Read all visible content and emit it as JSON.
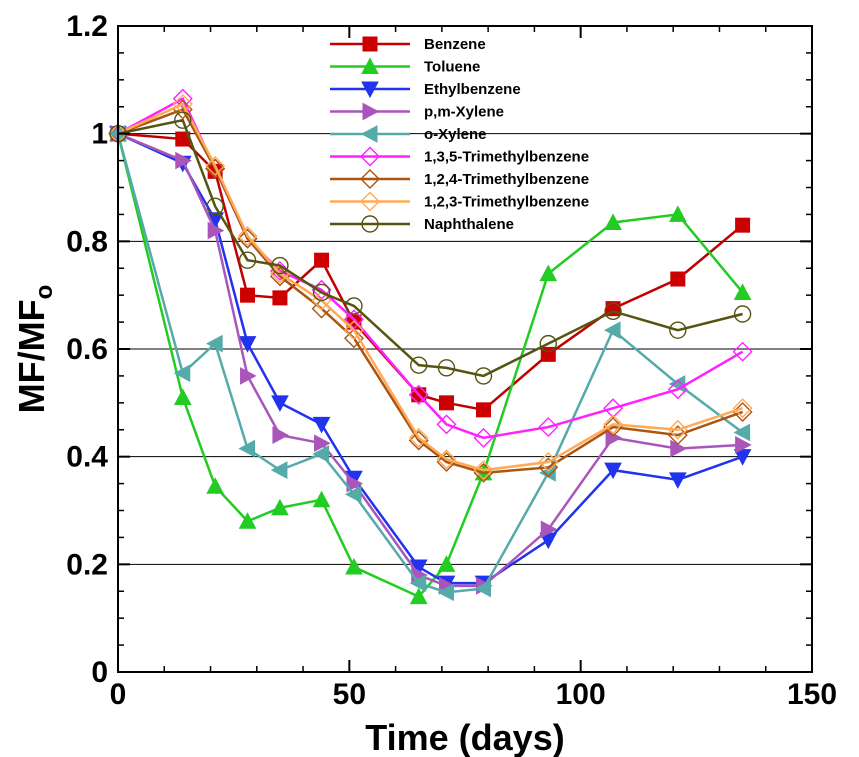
{
  "chart_data": {
    "type": "line",
    "xlabel": "Time (days)",
    "ylabel_main": "MF/MF",
    "ylabel_sub": "o",
    "xlim": [
      0,
      150
    ],
    "ylim": [
      0,
      1.2
    ],
    "xticks": [
      0,
      50,
      100,
      150
    ],
    "xtick_labels": [
      "0",
      "50",
      "100",
      "150"
    ],
    "yticks": [
      0,
      0.2,
      0.4,
      0.6,
      0.8,
      1,
      1.2
    ],
    "ytick_labels": [
      "0",
      "0.2",
      "0.4",
      "0.6",
      "0.8",
      "1",
      "1.2"
    ],
    "grid": "horizontal",
    "legend_position": "top-center",
    "x": [
      0,
      14,
      21,
      28,
      35,
      44,
      51,
      65,
      71,
      79,
      93,
      107,
      121,
      135
    ],
    "series": [
      {
        "name": "Benzene",
        "marker": "square",
        "filled": true,
        "color": "#c00000",
        "markerColor": "#cc0000",
        "values": [
          1.0,
          0.99,
          0.93,
          0.7,
          0.695,
          0.765,
          0.65,
          0.515,
          0.5,
          0.487,
          0.59,
          0.675,
          0.73,
          0.83
        ]
      },
      {
        "name": "Toluene",
        "marker": "triangle-up",
        "filled": true,
        "color": "#22cc22",
        "markerColor": "#22cc22",
        "values": [
          1.0,
          0.51,
          0.345,
          0.28,
          0.305,
          0.32,
          0.195,
          0.14,
          0.2,
          0.37,
          0.74,
          0.835,
          0.85,
          0.705
        ]
      },
      {
        "name": "Ethylbenzene",
        "marker": "triangle-down",
        "filled": true,
        "color": "#2233ee",
        "markerColor": "#2233ee",
        "values": [
          1.0,
          0.945,
          0.84,
          0.61,
          0.5,
          0.46,
          0.36,
          0.195,
          0.165,
          0.165,
          0.245,
          0.375,
          0.357,
          0.4
        ]
      },
      {
        "name": "p,m-Xylene",
        "marker": "triangle-right",
        "filled": true,
        "color": "#aa55bb",
        "markerColor": "#aa55bb",
        "values": [
          1.0,
          0.95,
          0.82,
          0.55,
          0.44,
          0.425,
          0.35,
          0.18,
          0.16,
          0.16,
          0.265,
          0.435,
          0.415,
          0.422
        ]
      },
      {
        "name": "o-Xylene",
        "marker": "triangle-left",
        "filled": true,
        "color": "#55aaaa",
        "markerColor": "#55aaaa",
        "values": [
          1.0,
          0.555,
          0.61,
          0.415,
          0.375,
          0.405,
          0.33,
          0.165,
          0.148,
          0.155,
          0.37,
          0.635,
          0.535,
          0.445
        ]
      },
      {
        "name": "1,3,5-Trimethylbenzene",
        "marker": "diamond",
        "filled": false,
        "color": "#ff22ff",
        "markerColor": "#ff22ff",
        "values": [
          1.0,
          1.065,
          0.935,
          0.805,
          0.745,
          0.71,
          0.655,
          0.515,
          0.46,
          0.435,
          0.455,
          0.49,
          0.525,
          0.595
        ]
      },
      {
        "name": "1,2,4-Trimethylbenzene",
        "marker": "diamond",
        "filled": false,
        "color": "#aa5511",
        "markerColor": "#aa5511",
        "values": [
          1.0,
          1.045,
          0.935,
          0.805,
          0.735,
          0.675,
          0.62,
          0.43,
          0.39,
          0.37,
          0.38,
          0.455,
          0.44,
          0.483
        ]
      },
      {
        "name": "1,2,3-Trimethylbenzene",
        "marker": "diamond",
        "filled": false,
        "color": "#ffaa55",
        "markerColor": "#ffaa55",
        "values": [
          1.0,
          1.055,
          0.94,
          0.81,
          0.74,
          0.69,
          0.635,
          0.435,
          0.395,
          0.375,
          0.39,
          0.46,
          0.45,
          0.49
        ]
      },
      {
        "name": "Naphthalene",
        "marker": "circle",
        "filled": false,
        "color": "#555511",
        "markerColor": "#555511",
        "values": [
          1.0,
          1.025,
          0.865,
          0.765,
          0.755,
          0.705,
          0.68,
          0.57,
          0.565,
          0.55,
          0.61,
          0.67,
          0.635,
          0.665
        ]
      }
    ]
  }
}
